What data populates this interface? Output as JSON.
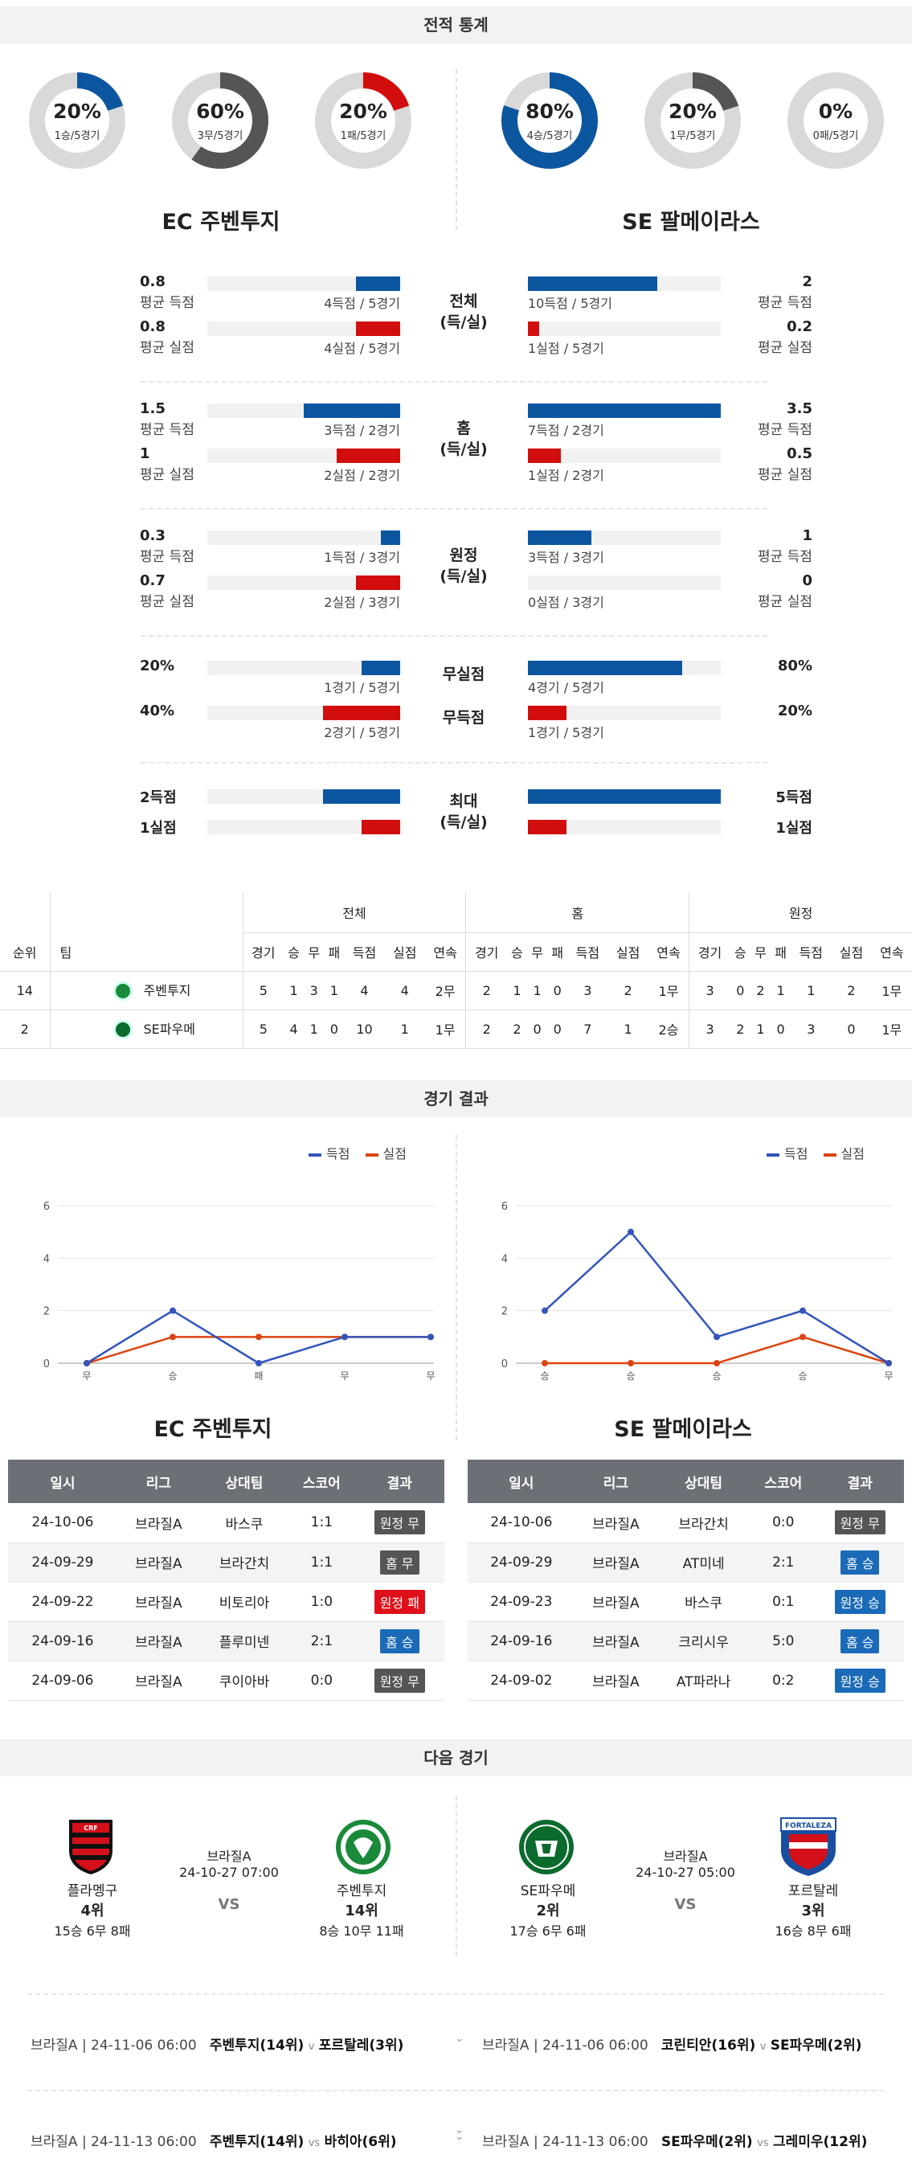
{
  "sections": {
    "stats": "전적 통계",
    "results": "경기 결과",
    "next": "다음 경기"
  },
  "team_a": {
    "name": "EC 주벤투지",
    "donuts": [
      {
        "pct": "20%",
        "sub": "1승/5경기",
        "fraction": 0.2,
        "color": "#0c56a0"
      },
      {
        "pct": "60%",
        "sub": "3무/5경기",
        "fraction": 0.6,
        "color": "#555555"
      },
      {
        "pct": "20%",
        "sub": "1패/5경기",
        "fraction": 0.2,
        "color": "#d10d0d"
      }
    ]
  },
  "team_b": {
    "name": "SE 팔메이라스",
    "donuts": [
      {
        "pct": "80%",
        "sub": "4승/5경기",
        "fraction": 0.8,
        "color": "#0c56a0"
      },
      {
        "pct": "20%",
        "sub": "1무/5경기",
        "fraction": 0.2,
        "color": "#555555"
      },
      {
        "pct": "0%",
        "sub": "0패/5경기",
        "fraction": 0.0,
        "color": "#d10d0d"
      }
    ]
  },
  "stat_groups": [
    {
      "label": "전체\n(득/실)",
      "rows": [
        {
          "a_val": "0.8",
          "a_lbl": "평균 득점",
          "a_cap": "4득점 / 5경기",
          "a_frac": 0.23,
          "b_val": "2",
          "b_lbl": "평균 득점",
          "b_cap": "10득점 / 5경기",
          "b_frac": 0.67,
          "color": "blue"
        },
        {
          "a_val": "0.8",
          "a_lbl": "평균 실점",
          "a_cap": "4실점 / 5경기",
          "a_frac": 0.23,
          "b_val": "0.2",
          "b_lbl": "평균 실점",
          "b_cap": "1실점 / 5경기",
          "b_frac": 0.06,
          "color": "red"
        }
      ]
    },
    {
      "label": "홈\n(득/실)",
      "rows": [
        {
          "a_val": "1.5",
          "a_lbl": "평균 득점",
          "a_cap": "3득점 / 2경기",
          "a_frac": 0.5,
          "b_val": "3.5",
          "b_lbl": "평균 득점",
          "b_cap": "7득점 / 2경기",
          "b_frac": 1.0,
          "color": "blue"
        },
        {
          "a_val": "1",
          "a_lbl": "평균 실점",
          "a_cap": "2실점 / 2경기",
          "a_frac": 0.33,
          "b_val": "0.5",
          "b_lbl": "평균 실점",
          "b_cap": "1실점 / 2경기",
          "b_frac": 0.17,
          "color": "red"
        }
      ]
    },
    {
      "label": "원정\n(득/실)",
      "rows": [
        {
          "a_val": "0.3",
          "a_lbl": "평균 득점",
          "a_cap": "1득점 / 3경기",
          "a_frac": 0.1,
          "b_val": "1",
          "b_lbl": "평균 득점",
          "b_cap": "3득점 / 3경기",
          "b_frac": 0.33,
          "color": "blue"
        },
        {
          "a_val": "0.7",
          "a_lbl": "평균 실점",
          "a_cap": "2실점 / 3경기",
          "a_frac": 0.23,
          "b_val": "0",
          "b_lbl": "평균 실점",
          "b_cap": "0실점 / 3경기",
          "b_frac": 0.0,
          "color": "red"
        }
      ]
    }
  ],
  "clean_sheet": {
    "label1": "무실점",
    "label2": "무득점",
    "rows": [
      {
        "a_val": "20%",
        "a_cap": "1경기 / 5경기",
        "a_frac": 0.2,
        "b_val": "80%",
        "b_cap": "4경기 / 5경기",
        "b_frac": 0.8,
        "color": "blue"
      },
      {
        "a_val": "40%",
        "a_cap": "2경기 / 5경기",
        "a_frac": 0.4,
        "b_val": "20%",
        "b_cap": "1경기 / 5경기",
        "b_frac": 0.2,
        "color": "red"
      }
    ]
  },
  "max_stats": {
    "label": "최대\n(득/실)",
    "rows": [
      {
        "a_val": "2득점",
        "a_frac": 0.4,
        "b_val": "5득점",
        "b_frac": 1.0,
        "color": "blue"
      },
      {
        "a_val": "1실점",
        "a_frac": 0.2,
        "b_val": "1실점",
        "b_frac": 0.2,
        "color": "red"
      }
    ]
  },
  "standings": {
    "groups": [
      "전체",
      "홈",
      "원정"
    ],
    "col_rank": "순위",
    "col_team": "팀",
    "cols": [
      "경기",
      "승",
      "무",
      "패",
      "득점",
      "실점",
      "연속"
    ],
    "rows": [
      {
        "rank": "14",
        "team": "주벤투지",
        "logo_color": "#1a8a3a",
        "all": [
          "5",
          "1",
          "3",
          "1",
          "4",
          "4",
          "2무"
        ],
        "home": [
          "2",
          "1",
          "1",
          "0",
          "3",
          "2",
          "1무"
        ],
        "away": [
          "3",
          "0",
          "2",
          "1",
          "1",
          "2",
          "1무"
        ]
      },
      {
        "rank": "2",
        "team": "SE파우메",
        "logo_color": "#0b6b2e",
        "all": [
          "5",
          "4",
          "1",
          "0",
          "10",
          "1",
          "1무"
        ],
        "home": [
          "2",
          "2",
          "0",
          "0",
          "7",
          "1",
          "2승"
        ],
        "away": [
          "3",
          "2",
          "1",
          "0",
          "3",
          "0",
          "1무"
        ]
      }
    ]
  },
  "charts": {
    "legend_scored": "득점",
    "legend_conceded": "실점",
    "color_scored": "#3355bb",
    "color_conceded": "#dd4411"
  },
  "chart_data": [
    {
      "type": "line",
      "categories": [
        "무",
        "승",
        "패",
        "무",
        "무"
      ],
      "series": [
        {
          "name": "득점",
          "values": [
            0,
            2,
            0,
            1,
            1
          ]
        },
        {
          "name": "실점",
          "values": [
            0,
            1,
            1,
            1,
            1
          ]
        }
      ],
      "ylim": [
        0,
        6
      ],
      "yticks": [
        "0",
        "2",
        "4",
        "6"
      ],
      "grid": true,
      "legend": "top-right"
    },
    {
      "type": "line",
      "categories": [
        "승",
        "승",
        "승",
        "승",
        "무"
      ],
      "series": [
        {
          "name": "득점",
          "values": [
            2,
            5,
            1,
            2,
            0
          ]
        },
        {
          "name": "실점",
          "values": [
            0,
            0,
            0,
            1,
            0
          ]
        }
      ],
      "ylim": [
        0,
        6
      ],
      "yticks": [
        "0",
        "2",
        "4",
        "6"
      ],
      "grid": true,
      "legend": "top-right"
    }
  ],
  "results": {
    "headers": [
      "일시",
      "리그",
      "상대팀",
      "스코어",
      "결과"
    ],
    "team_a_title": "EC 주벤투지",
    "team_b_title": "SE 팔메이라스",
    "a_rows": [
      {
        "date": "24-10-06",
        "league": "브라질A",
        "opp": "바스쿠",
        "score": "1:1",
        "result": "원정 무",
        "kind": "gray"
      },
      {
        "date": "24-09-29",
        "league": "브라질A",
        "opp": "브라간치",
        "score": "1:1",
        "result": "홈 무",
        "kind": "gray"
      },
      {
        "date": "24-09-22",
        "league": "브라질A",
        "opp": "비토리아",
        "score": "1:0",
        "result": "원정 패",
        "kind": "red"
      },
      {
        "date": "24-09-16",
        "league": "브라질A",
        "opp": "플루미넨",
        "score": "2:1",
        "result": "홈 승",
        "kind": "blue"
      },
      {
        "date": "24-09-06",
        "league": "브라질A",
        "opp": "쿠이아바",
        "score": "0:0",
        "result": "원정 무",
        "kind": "gray"
      }
    ],
    "b_rows": [
      {
        "date": "24-10-06",
        "league": "브라질A",
        "opp": "브라간치",
        "score": "0:0",
        "result": "원정 무",
        "kind": "gray"
      },
      {
        "date": "24-09-29",
        "league": "브라질A",
        "opp": "AT미네",
        "score": "2:1",
        "result": "홈 승",
        "kind": "blue"
      },
      {
        "date": "24-09-23",
        "league": "브라질A",
        "opp": "바스쿠",
        "score": "0:1",
        "result": "원정 승",
        "kind": "blue"
      },
      {
        "date": "24-09-16",
        "league": "브라질A",
        "opp": "크리시우",
        "score": "5:0",
        "result": "홈 승",
        "kind": "blue"
      },
      {
        "date": "24-09-02",
        "league": "브라질A",
        "opp": "AT파라나",
        "score": "0:2",
        "result": "원정 승",
        "kind": "blue"
      }
    ]
  },
  "next_matches": [
    {
      "league": "브라질A",
      "datetime": "24-10-27 07:00",
      "vs": "VS",
      "home": {
        "name": "플라멩구",
        "rank": "4위",
        "record": "15승 6무 8패"
      },
      "away": {
        "name": "주벤투지",
        "rank": "14위",
        "record": "8승 10무 11패"
      }
    },
    {
      "league": "브라질A",
      "datetime": "24-10-27 05:00",
      "vs": "VS",
      "home": {
        "name": "SE파우메",
        "rank": "2위",
        "record": "17승 6무 6패"
      },
      "away": {
        "name": "포르탈레",
        "rank": "3위",
        "record": "16승 8무 6패"
      }
    }
  ],
  "logo_text": {
    "fortaleza": "FORTALEZA"
  },
  "footer_rows": [
    {
      "a_meta": "브라질A | 24-11-06 06:00",
      "a_home": "주벤투지(14위)",
      "a_vs": "v",
      "a_away": "포르탈레(3위)",
      "b_meta": "브라질A | 24-11-06 06:00",
      "b_home": "코린티안(16위)",
      "b_vs": "v",
      "b_away": "SE파우메(2위)"
    },
    {
      "a_meta": "브라질A | 24-11-13 06:00",
      "a_home": "주벤투지(14위)",
      "a_vs": "vs",
      "a_away": "바히아(6위)",
      "b_meta": "브라질A | 24-11-13 06:00",
      "b_home": "SE파우메(2위)",
      "b_vs": "vs",
      "b_away": "그레미우(12위)"
    }
  ]
}
